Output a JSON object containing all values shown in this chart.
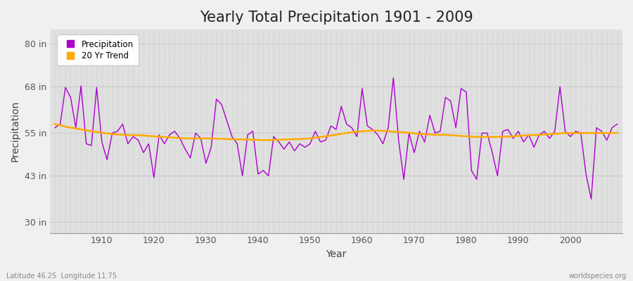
{
  "title": "Yearly Total Precipitation 1901 - 2009",
  "xlabel": "Year",
  "ylabel": "Precipitation",
  "years": [
    1901,
    1902,
    1903,
    1904,
    1905,
    1906,
    1907,
    1908,
    1909,
    1910,
    1911,
    1912,
    1913,
    1914,
    1915,
    1916,
    1917,
    1918,
    1919,
    1920,
    1921,
    1922,
    1923,
    1924,
    1925,
    1926,
    1927,
    1928,
    1929,
    1930,
    1931,
    1932,
    1933,
    1934,
    1935,
    1936,
    1937,
    1938,
    1939,
    1940,
    1941,
    1942,
    1943,
    1944,
    1945,
    1946,
    1947,
    1948,
    1949,
    1950,
    1951,
    1952,
    1953,
    1954,
    1955,
    1956,
    1957,
    1958,
    1959,
    1960,
    1961,
    1962,
    1963,
    1964,
    1965,
    1966,
    1967,
    1968,
    1969,
    1970,
    1971,
    1972,
    1973,
    1974,
    1975,
    1976,
    1977,
    1978,
    1979,
    1980,
    1981,
    1982,
    1983,
    1984,
    1985,
    1986,
    1987,
    1988,
    1989,
    1990,
    1991,
    1992,
    1993,
    1994,
    1995,
    1996,
    1997,
    1998,
    1999,
    2000,
    2001,
    2002,
    2003,
    2004,
    2005,
    2006,
    2007,
    2008,
    2009
  ],
  "precip": [
    56.5,
    57.5,
    67.8,
    65.0,
    56.5,
    68.2,
    52.0,
    51.5,
    67.8,
    52.5,
    47.5,
    55.0,
    55.5,
    57.5,
    52.0,
    54.0,
    53.0,
    49.5,
    52.0,
    42.5,
    54.5,
    52.0,
    54.5,
    55.5,
    53.5,
    50.5,
    48.0,
    55.0,
    53.5,
    46.5,
    51.0,
    64.5,
    63.0,
    58.5,
    54.0,
    52.0,
    43.0,
    54.5,
    55.5,
    43.5,
    44.5,
    43.0,
    54.0,
    52.5,
    50.5,
    52.5,
    50.0,
    52.0,
    51.0,
    52.0,
    55.5,
    52.5,
    53.0,
    57.0,
    56.0,
    62.5,
    57.5,
    56.5,
    54.0,
    67.5,
    57.0,
    56.0,
    54.5,
    52.0,
    56.5,
    70.5,
    53.0,
    42.0,
    55.0,
    49.5,
    55.5,
    52.5,
    60.0,
    55.0,
    55.5,
    65.0,
    64.0,
    56.5,
    67.5,
    66.5,
    44.5,
    42.0,
    55.0,
    55.0,
    49.5,
    43.0,
    55.5,
    56.0,
    53.5,
    55.5,
    52.5,
    54.5,
    51.0,
    54.5,
    55.5,
    53.5,
    55.5,
    68.0,
    55.5,
    54.0,
    55.5,
    55.0,
    43.5,
    36.5,
    56.5,
    55.5,
    53.0,
    56.5,
    57.5
  ],
  "trend": [
    57.5,
    57.2,
    56.8,
    56.5,
    56.3,
    56.0,
    55.8,
    55.5,
    55.3,
    55.1,
    54.9,
    54.7,
    54.6,
    54.5,
    54.5,
    54.4,
    54.4,
    54.3,
    54.2,
    54.1,
    54.0,
    53.9,
    53.8,
    53.7,
    53.6,
    53.5,
    53.5,
    53.5,
    53.5,
    53.5,
    53.5,
    53.4,
    53.4,
    53.3,
    53.3,
    53.2,
    53.2,
    53.2,
    53.1,
    53.1,
    53.0,
    53.0,
    53.1,
    53.1,
    53.2,
    53.2,
    53.3,
    53.3,
    53.4,
    53.5,
    53.7,
    53.9,
    54.1,
    54.3,
    54.5,
    54.8,
    55.0,
    55.2,
    55.4,
    55.5,
    55.6,
    55.7,
    55.7,
    55.6,
    55.5,
    55.4,
    55.3,
    55.2,
    55.1,
    54.9,
    54.8,
    54.7,
    54.6,
    54.5,
    54.5,
    54.5,
    54.4,
    54.3,
    54.2,
    54.1,
    54.0,
    53.9,
    53.9,
    53.9,
    53.9,
    53.9,
    54.0,
    54.0,
    54.1,
    54.2,
    54.3,
    54.4,
    54.4,
    54.5,
    54.6,
    54.7,
    54.8,
    54.9,
    55.0,
    55.0,
    55.0,
    55.0,
    55.0,
    55.0,
    55.0,
    55.0,
    55.0,
    55.0,
    55.0
  ],
  "precip_color": "#aa00cc",
  "trend_color": "#ffaa00",
  "fig_bg_color": "#f0f0f0",
  "plot_bg_color": "#e0e0e0",
  "grid_color_h": "#cccccc",
  "grid_color_v": "#c8c8c8",
  "yticks": [
    30,
    43,
    55,
    68,
    80
  ],
  "ytick_labels": [
    "30 in",
    "43 in",
    "55 in",
    "68 in",
    "80 in"
  ],
  "xtick_years": [
    1910,
    1920,
    1930,
    1940,
    1950,
    1960,
    1970,
    1980,
    1990,
    2000
  ],
  "ylim": [
    27,
    84
  ],
  "xlim": [
    1900,
    2010
  ],
  "title_fontsize": 15,
  "axis_label_fontsize": 10,
  "tick_fontsize": 9,
  "footer_left": "Latitude 46.25  Longitude 11.75",
  "footer_right": "worldspecies.org",
  "legend_labels": [
    "Precipitation",
    "20 Yr Trend"
  ]
}
